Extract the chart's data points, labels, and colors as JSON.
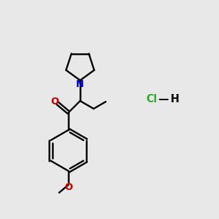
{
  "bg_color": "#e8e8e8",
  "line_color": "#000000",
  "N_color": "#0000cc",
  "O_color": "#cc0000",
  "Cl_color": "#33aa33",
  "lw": 1.8,
  "fsz": 10
}
